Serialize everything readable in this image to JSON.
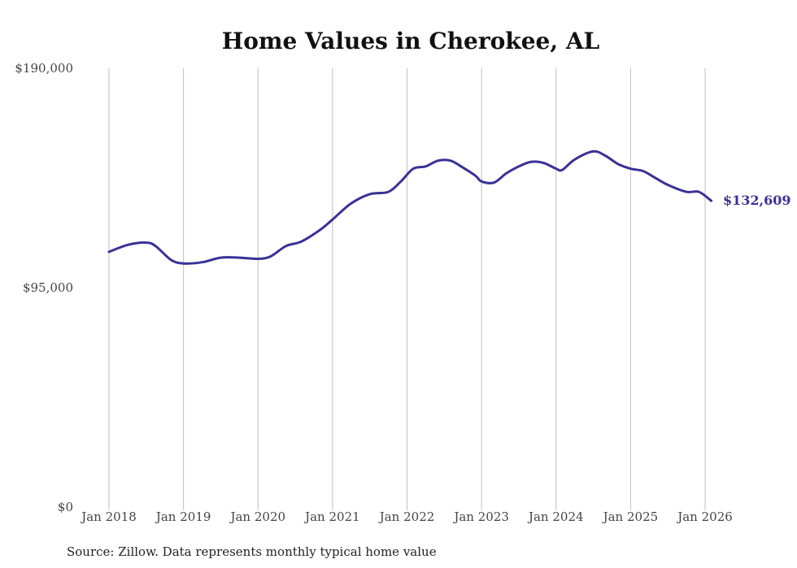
{
  "chart_data": {
    "type": "line",
    "title": "Home Values in Cherokee, AL",
    "xlabel": "",
    "ylabel": "",
    "ylim": [
      0,
      190000
    ],
    "y_ticks": [
      {
        "value": 0,
        "label": "$0"
      },
      {
        "value": 95000,
        "label": "$95,000"
      },
      {
        "value": 190000,
        "label": "$190,000"
      }
    ],
    "x_ticks": [
      {
        "value": 2018,
        "label": "Jan 2018"
      },
      {
        "value": 2019,
        "label": "Jan 2019"
      },
      {
        "value": 2020,
        "label": "Jan 2020"
      },
      {
        "value": 2021,
        "label": "Jan 2021"
      },
      {
        "value": 2022,
        "label": "Jan 2022"
      },
      {
        "value": 2023,
        "label": "Jan 2023"
      },
      {
        "value": 2024,
        "label": "Jan 2024"
      },
      {
        "value": 2025,
        "label": "Jan 2025"
      },
      {
        "value": 2026,
        "label": "Jan 2026"
      }
    ],
    "xlim": [
      2018,
      2026.083
    ],
    "grid": "vertical",
    "line_color": "#3a3196",
    "end_label": "$132,609",
    "series": [
      {
        "name": "Typical home value",
        "points": [
          [
            2018.0,
            110500
          ],
          [
            2018.25,
            113500
          ],
          [
            2018.5,
            114500
          ],
          [
            2018.625,
            113000
          ],
          [
            2018.833,
            107000
          ],
          [
            2019.0,
            105500
          ],
          [
            2019.25,
            106000
          ],
          [
            2019.5,
            108000
          ],
          [
            2019.75,
            108000
          ],
          [
            2020.0,
            107500
          ],
          [
            2020.167,
            108500
          ],
          [
            2020.375,
            113000
          ],
          [
            2020.583,
            115000
          ],
          [
            2020.833,
            120000
          ],
          [
            2021.0,
            124500
          ],
          [
            2021.25,
            131500
          ],
          [
            2021.5,
            135500
          ],
          [
            2021.75,
            136500
          ],
          [
            2021.917,
            141000
          ],
          [
            2022.083,
            146500
          ],
          [
            2022.25,
            147500
          ],
          [
            2022.417,
            150000
          ],
          [
            2022.583,
            150000
          ],
          [
            2022.75,
            147000
          ],
          [
            2022.917,
            143500
          ],
          [
            2023.0,
            141000
          ],
          [
            2023.167,
            140500
          ],
          [
            2023.333,
            144500
          ],
          [
            2023.5,
            147500
          ],
          [
            2023.667,
            149500
          ],
          [
            2023.833,
            149000
          ],
          [
            2024.0,
            146500
          ],
          [
            2024.083,
            146000
          ],
          [
            2024.25,
            150500
          ],
          [
            2024.5,
            154000
          ],
          [
            2024.667,
            152000
          ],
          [
            2024.833,
            148500
          ],
          [
            2025.0,
            146500
          ],
          [
            2025.167,
            145500
          ],
          [
            2025.333,
            142500
          ],
          [
            2025.5,
            139500
          ],
          [
            2025.75,
            136500
          ],
          [
            2025.917,
            136500
          ],
          [
            2026.083,
            132609
          ]
        ]
      }
    ]
  },
  "source_note": "Source: Zillow. Data represents monthly typical home value"
}
